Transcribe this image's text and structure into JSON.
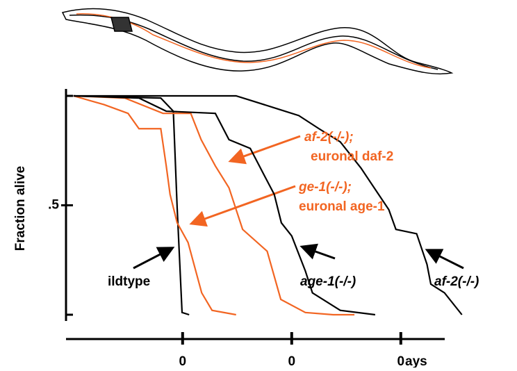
{
  "chart_data": {
    "type": "line",
    "ylabel": "Fraction alive",
    "xlabel": "ays",
    "xlim": [
      -1.5,
      72
    ],
    "ylim": [
      0,
      1
    ],
    "xticks": [
      {
        "value": 20,
        "label": "0"
      },
      {
        "value": 40,
        "label": "0"
      },
      {
        "value": 60,
        "label": "0"
      }
    ],
    "yticks": [
      {
        "value": 0.5,
        "label": ".5"
      }
    ],
    "series": [
      {
        "color": "#000000",
        "x": [
          0,
          16,
          18.3,
          19,
          19.9,
          21.2
        ],
        "values": [
          1,
          0.99,
          0.93,
          0.49,
          0.01,
          0
        ]
      },
      {
        "color": "#f26522",
        "x": [
          0,
          5.6,
          10,
          12,
          16,
          17,
          17.7,
          19,
          21,
          23.5,
          25.4,
          29.8
        ],
        "values": [
          1,
          0.96,
          0.92,
          0.85,
          0.85,
          0.68,
          0.55,
          0.42,
          0.33,
          0.1,
          0.02,
          0
        ]
      },
      {
        "color": "#f26522",
        "x": [
          0,
          9.4,
          16.4,
          21.5,
          23.4,
          26,
          28.5,
          31,
          35.5,
          38,
          42.5,
          47.6,
          51.5
        ],
        "values": [
          1,
          0.99,
          0.92,
          0.92,
          0.8,
          0.68,
          0.58,
          0.39,
          0.29,
          0.07,
          0.01,
          0,
          0
        ]
      },
      {
        "color": "#000000",
        "x": [
          0,
          12,
          17,
          26,
          28.5,
          32.4,
          34.9,
          36.8,
          38.1,
          40,
          42.5,
          43.8,
          48.9,
          55.3
        ],
        "values": [
          1,
          0.99,
          0.93,
          0.92,
          0.8,
          0.76,
          0.64,
          0.55,
          0.42,
          0.36,
          0.2,
          0.1,
          0.02,
          0
        ]
      },
      {
        "color": "#000000",
        "x": [
          0,
          29.8,
          32.4,
          37.5,
          41.3,
          45,
          48.9,
          52.7,
          57.8,
          59.1,
          62.9,
          64.8,
          65.5,
          68,
          71.2
        ],
        "values": [
          1,
          1,
          0.98,
          0.94,
          0.91,
          0.85,
          0.79,
          0.67,
          0.48,
          0.39,
          0.37,
          0.23,
          0.14,
          0.1,
          0
        ]
      }
    ],
    "annotations": [
      "af-2(-/-);",
      "euronal daf-2",
      "ge-1(-/-);",
      "euronal age-1",
      "ildtype",
      "age-1(-/-)",
      "af-2(-/-)"
    ]
  }
}
